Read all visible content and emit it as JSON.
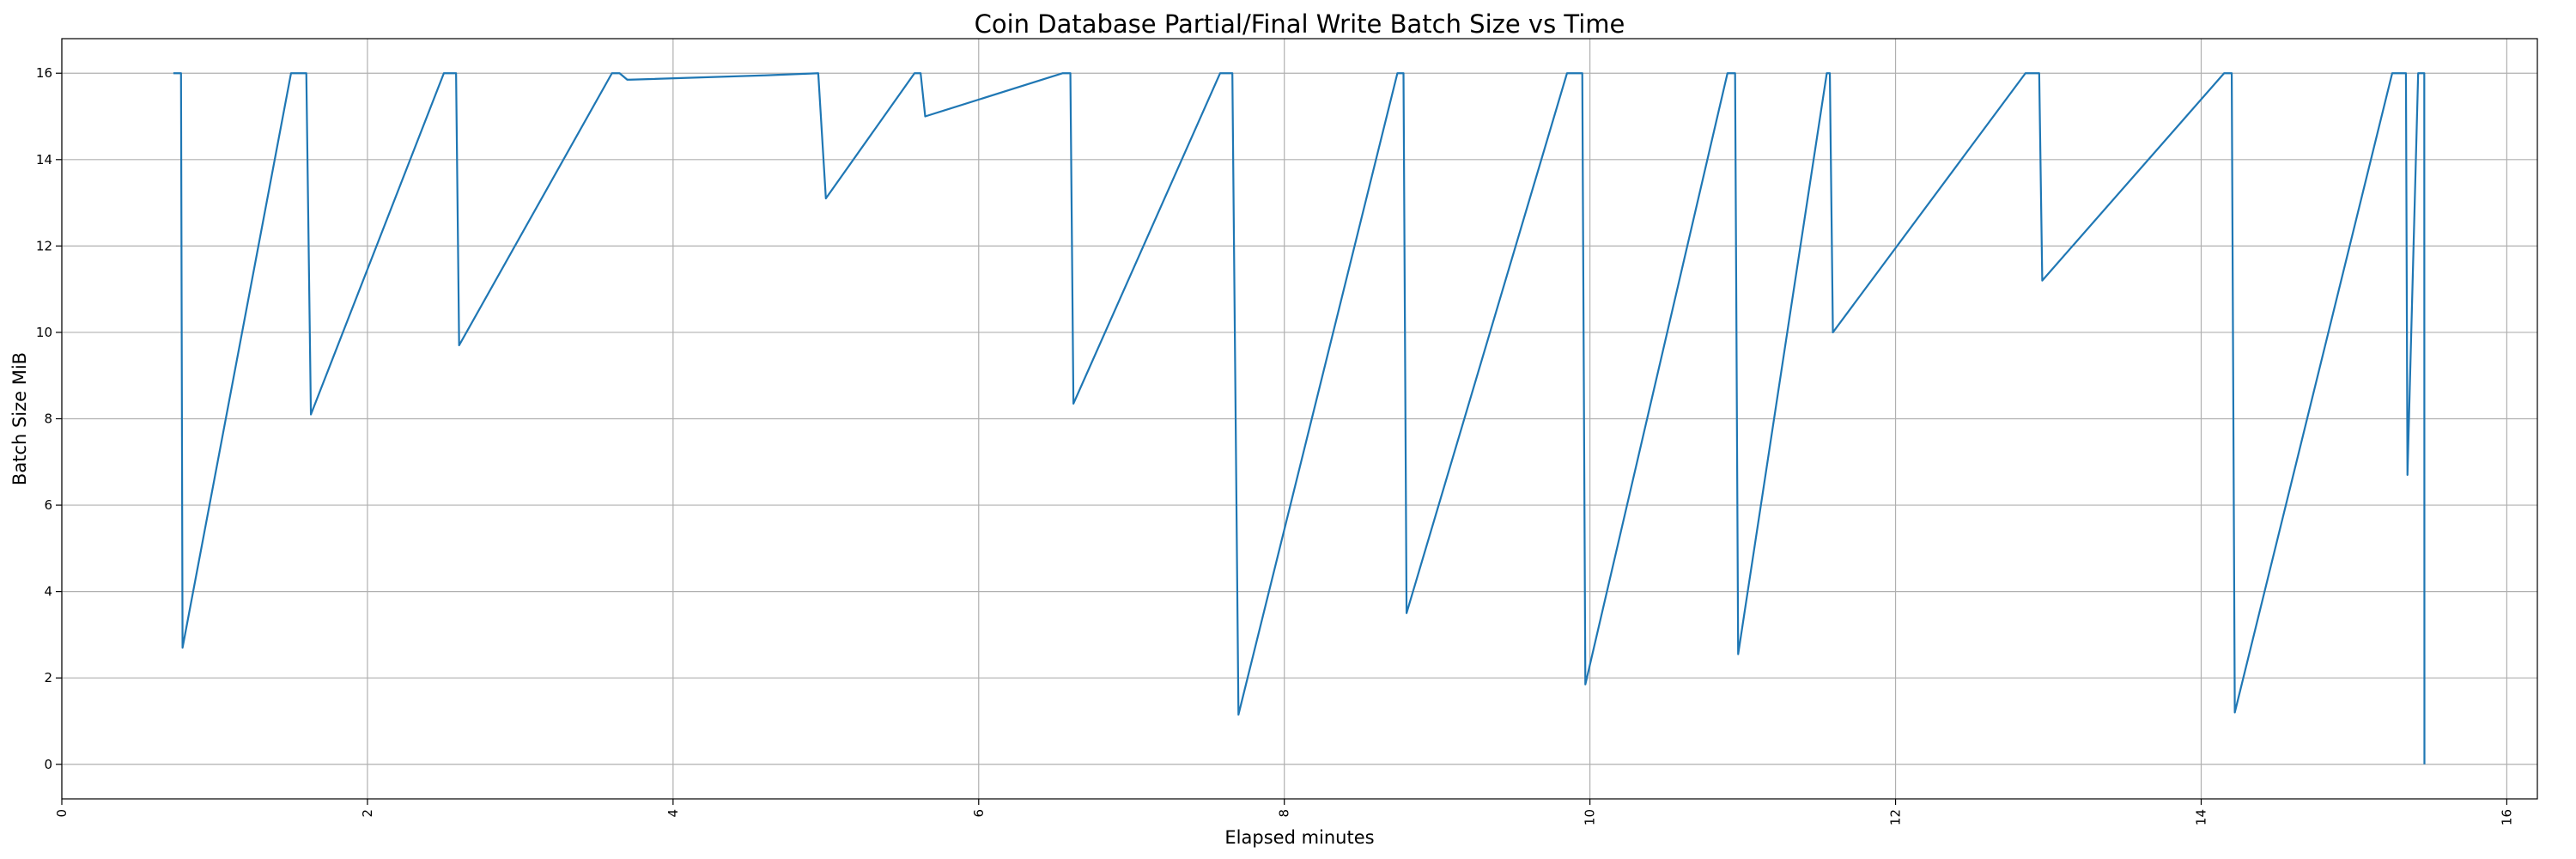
{
  "chart_data": {
    "type": "line",
    "title": "Coin Database Partial/Final Write Batch Size vs Time",
    "xlabel": "Elapsed minutes",
    "ylabel": "Batch Size MiB",
    "xlim": [
      0,
      16.2
    ],
    "ylim": [
      -0.8,
      16.8
    ],
    "xticks": [
      0,
      2,
      4,
      6,
      8,
      10,
      12,
      14,
      16
    ],
    "yticks": [
      0,
      2,
      4,
      6,
      8,
      10,
      12,
      14,
      16
    ],
    "xtick_rotation": 90,
    "grid": true,
    "series": [
      {
        "color": "#1f77b4",
        "x": [
          0.73,
          0.78,
          0.79,
          1.5,
          1.53,
          1.6,
          1.63,
          2.5,
          2.53,
          2.58,
          2.6,
          3.6,
          3.65,
          3.7,
          3.72,
          4.6,
          4.95,
          5.0,
          5.58,
          5.62,
          5.65,
          6.55,
          6.6,
          6.62,
          7.58,
          7.62,
          7.66,
          7.7,
          8.74,
          8.78,
          8.8,
          9.85,
          9.88,
          9.95,
          9.97,
          10.9,
          10.95,
          10.97,
          11.55,
          11.57,
          11.59,
          12.85,
          12.88,
          12.94,
          12.96,
          14.15,
          14.2,
          14.22,
          15.25,
          15.32,
          15.34,
          15.35,
          15.42,
          15.46,
          15.461
        ],
        "y": [
          16.0,
          16.0,
          2.7,
          16.0,
          16.0,
          16.0,
          8.1,
          16.0,
          16.0,
          16.0,
          9.7,
          16.0,
          16.0,
          15.85,
          15.85,
          15.95,
          16.0,
          13.1,
          16.0,
          16.0,
          15.0,
          16.0,
          16.0,
          8.35,
          16.0,
          16.0,
          16.0,
          1.15,
          16.0,
          16.0,
          3.5,
          16.0,
          16.0,
          16.0,
          1.85,
          16.0,
          16.0,
          2.55,
          16.0,
          16.0,
          10.0,
          16.0,
          16.0,
          16.0,
          11.2,
          16.0,
          16.0,
          1.2,
          16.0,
          16.0,
          16.0,
          6.7,
          16.0,
          16.0,
          0.0
        ]
      }
    ]
  }
}
